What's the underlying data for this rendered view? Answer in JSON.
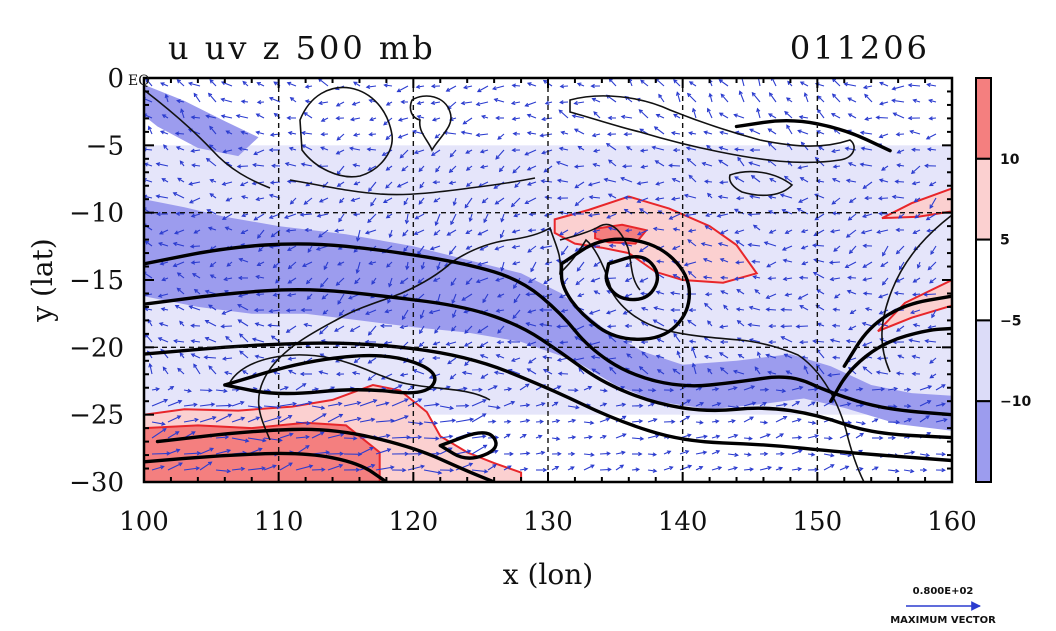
{
  "chart_data": {
    "type": "heatmap",
    "title_left": "u uv z 500 mb",
    "title_right": "011206",
    "xlabel": "x (lon)",
    "ylabel": "y (lat)",
    "xlim": [
      100,
      160
    ],
    "ylim": [
      -30,
      0
    ],
    "x_ticks": [
      100,
      110,
      120,
      130,
      140,
      150,
      160
    ],
    "y_ticks": [
      0,
      -5,
      -10,
      -15,
      -20,
      -25,
      -30
    ],
    "x_tick_labels": [
      "100",
      "110",
      "120",
      "130",
      "140",
      "150",
      "160"
    ],
    "y_tick_labels": [
      "0",
      "−5",
      "−10",
      "−15",
      "−20",
      "−25",
      "−30"
    ],
    "origin_label": "EQ",
    "grid": true,
    "colorbar": {
      "boundaries": [
        -10,
        -5,
        5,
        10
      ],
      "tick_labels": [
        "10",
        "5",
        "−5",
        "−10"
      ],
      "colors": [
        "#f47f7f",
        "#fbd0d0",
        "#ffffff",
        "#dcdcf8",
        "#9c9cee"
      ]
    },
    "vector_legend": {
      "value_label": "0.800E+02",
      "caption": "MAXIMUM VECTOR"
    },
    "shaded_regions": [
      {
        "name": "positive-u-east-australia",
        "level": 5,
        "points": [
          [
            130.5,
            -10.5
          ],
          [
            133,
            -9.8
          ],
          [
            136,
            -8.8
          ],
          [
            139,
            -9.7
          ],
          [
            142,
            -11
          ],
          [
            144,
            -12.4
          ],
          [
            145.5,
            -14.5
          ],
          [
            143,
            -15.2
          ],
          [
            140,
            -15
          ],
          [
            138,
            -14.4
          ],
          [
            136,
            -13
          ],
          [
            134,
            -12.6
          ],
          [
            132,
            -12.3
          ],
          [
            130.5,
            -11.5
          ]
        ]
      },
      {
        "name": "positive-u-core",
        "level": 10,
        "points": [
          [
            133.5,
            -11.2
          ],
          [
            135.5,
            -10.9
          ],
          [
            137.3,
            -11.3
          ],
          [
            136.5,
            -12.3
          ],
          [
            134.5,
            -12.2
          ],
          [
            133.5,
            -11.9
          ]
        ]
      },
      {
        "name": "positive-u-coral-sea-north",
        "level": 5,
        "points": [
          [
            154.8,
            -10.4
          ],
          [
            157,
            -9.3
          ],
          [
            160,
            -8.2
          ],
          [
            160,
            -9.9
          ],
          [
            157.5,
            -10.3
          ]
        ]
      },
      {
        "name": "positive-u-coral-sea-south",
        "level": 5,
        "points": [
          [
            154.5,
            -18.8
          ],
          [
            156.5,
            -16.7
          ],
          [
            160,
            -15
          ],
          [
            160,
            -16.9
          ],
          [
            157,
            -17.8
          ]
        ]
      },
      {
        "name": "positive-u-south-west",
        "level": 5,
        "points": [
          [
            100,
            -25
          ],
          [
            103,
            -24.6
          ],
          [
            107,
            -24.7
          ],
          [
            111,
            -24.4
          ],
          [
            114,
            -23.9
          ],
          [
            117,
            -22.8
          ],
          [
            119,
            -23.2
          ],
          [
            121,
            -24.8
          ],
          [
            122,
            -26.6
          ],
          [
            124,
            -27.8
          ],
          [
            126,
            -28.6
          ],
          [
            128,
            -29.3
          ],
          [
            128,
            -30
          ],
          [
            100,
            -30
          ]
        ]
      },
      {
        "name": "positive-u-south-west-core",
        "level": 10,
        "points": [
          [
            100,
            -26
          ],
          [
            104,
            -25.8
          ],
          [
            108,
            -26
          ],
          [
            112,
            -25.6
          ],
          [
            115,
            -25.8
          ],
          [
            117.5,
            -27.8
          ],
          [
            117.5,
            -30
          ],
          [
            100,
            -30
          ]
        ]
      },
      {
        "name": "negative-u-central-jet",
        "level": -10,
        "points": [
          [
            100,
            -9
          ],
          [
            103,
            -9.6
          ],
          [
            106,
            -10.3
          ],
          [
            110,
            -11
          ],
          [
            115,
            -11.6
          ],
          [
            120,
            -12.5
          ],
          [
            124,
            -13.5
          ],
          [
            128,
            -14.5
          ],
          [
            131,
            -16
          ],
          [
            134,
            -18.5
          ],
          [
            137,
            -20.3
          ],
          [
            140,
            -21.3
          ],
          [
            144,
            -21
          ],
          [
            148,
            -20.5
          ],
          [
            151,
            -21.4
          ],
          [
            154,
            -22.8
          ],
          [
            157,
            -23.4
          ],
          [
            160,
            -23.6
          ],
          [
            160,
            -26.2
          ],
          [
            156,
            -25.7
          ],
          [
            152,
            -24.5
          ],
          [
            149,
            -23.8
          ],
          [
            146,
            -24.2
          ],
          [
            142,
            -24.6
          ],
          [
            138,
            -24
          ],
          [
            135,
            -22.8
          ],
          [
            132,
            -21
          ],
          [
            128,
            -19.6
          ],
          [
            124,
            -18.9
          ],
          [
            120,
            -18.5
          ],
          [
            116,
            -18
          ],
          [
            112,
            -17.5
          ],
          [
            108,
            -17.5
          ],
          [
            104,
            -17
          ],
          [
            100,
            -16.2
          ]
        ]
      },
      {
        "name": "negative-u-north-west",
        "level": -10,
        "points": [
          [
            100,
            -0.5
          ],
          [
            103,
            -1.7
          ],
          [
            106,
            -3.2
          ],
          [
            108.5,
            -4.4
          ],
          [
            107,
            -5.8
          ],
          [
            104,
            -5.2
          ],
          [
            101,
            -3.6
          ],
          [
            100,
            -2.8
          ]
        ]
      }
    ]
  }
}
